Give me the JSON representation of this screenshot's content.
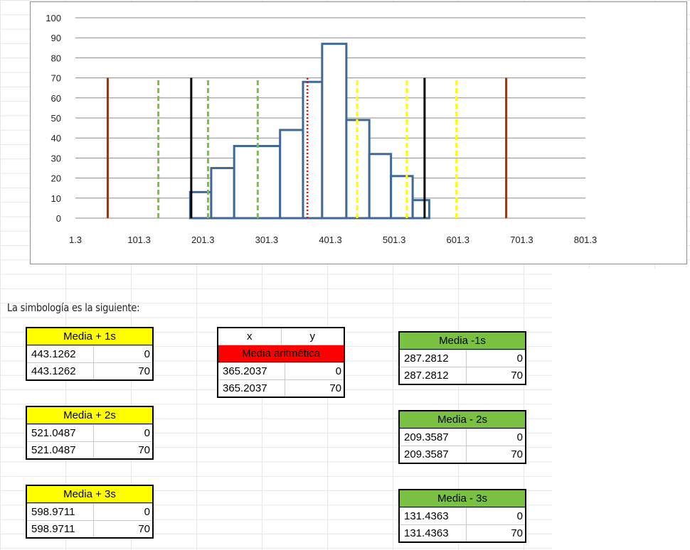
{
  "chart_data": {
    "type": "bar",
    "xlim": [
      1.3,
      801.3
    ],
    "ylim": [
      0,
      100
    ],
    "x_ticks": [
      "1.3",
      "101.3",
      "201.3",
      "301.3",
      "401.3",
      "501.3",
      "601.3",
      "701.3",
      "801.3"
    ],
    "y_ticks": [
      "0",
      "10",
      "20",
      "30",
      "40",
      "50",
      "60",
      "70",
      "80",
      "90",
      "100"
    ],
    "grid": true,
    "histogram": {
      "edges": [
        181.3,
        214.3,
        250.3,
        322.3,
        358.3,
        388.3,
        426.3,
        462.3,
        496.3,
        530.3,
        556.3
      ],
      "values": [
        13,
        25,
        36,
        44,
        68,
        87,
        49,
        32,
        21,
        9
      ],
      "color": "#41689a"
    },
    "vlines": [
      {
        "name": "Media aritmética",
        "x": 365.2037,
        "y": [
          0,
          70
        ],
        "color": "#ff0000",
        "dash": "dot"
      },
      {
        "name": "Media + 1s",
        "x": 443.1262,
        "y": [
          0,
          70
        ],
        "color": "#ffff00",
        "dash": "dash"
      },
      {
        "name": "Media + 2s",
        "x": 521.0487,
        "y": [
          0,
          70
        ],
        "color": "#ffff00",
        "dash": "dash"
      },
      {
        "name": "Media + 3s",
        "x": 598.9711,
        "y": [
          0,
          70
        ],
        "color": "#ffff00",
        "dash": "dash"
      },
      {
        "name": "Media -1s",
        "x": 287.2812,
        "y": [
          0,
          70
        ],
        "color": "#7ac143",
        "dash": "dash"
      },
      {
        "name": "Media - 2s",
        "x": 209.3587,
        "y": [
          0,
          70
        ],
        "color": "#7ac143",
        "dash": "dash"
      },
      {
        "name": "Media - 3s",
        "x": 131.4363,
        "y": [
          0,
          70
        ],
        "color": "#7ac143",
        "dash": "dash"
      },
      {
        "x": 183,
        "y": [
          0,
          70
        ],
        "color": "#000000",
        "dash": "solid"
      },
      {
        "x": 549,
        "y": [
          0,
          70
        ],
        "color": "#000000",
        "dash": "solid"
      },
      {
        "x": 52,
        "y": [
          0,
          70
        ],
        "color": "#8b3a1a",
        "dash": "solid"
      },
      {
        "x": 677,
        "y": [
          0,
          70
        ],
        "color": "#8b3a1a",
        "dash": "solid"
      }
    ]
  },
  "caption": "La simbología es la siguiente:",
  "tables": {
    "mean": {
      "header_x": "x",
      "header_y": "y",
      "title": "Media aritmética",
      "color": "#ff0000",
      "rows": [
        [
          "365.2037",
          "0"
        ],
        [
          "365.2037",
          "70"
        ]
      ]
    },
    "plus1": {
      "title": "Media + 1s",
      "color": "#ffff00",
      "rows": [
        [
          "443.1262",
          "0"
        ],
        [
          "443.1262",
          "70"
        ]
      ]
    },
    "plus2": {
      "title": "Media + 2s",
      "color": "#ffff00",
      "rows": [
        [
          "521.0487",
          "0"
        ],
        [
          "521.0487",
          "70"
        ]
      ]
    },
    "plus3": {
      "title": "Media + 3s",
      "color": "#ffff00",
      "rows": [
        [
          "598.9711",
          "0"
        ],
        [
          "598.9711",
          "70"
        ]
      ]
    },
    "minus1": {
      "title": "Media -1s",
      "color": "#7ac143",
      "rows": [
        [
          "287.2812",
          "0"
        ],
        [
          "287.2812",
          "70"
        ]
      ]
    },
    "minus2": {
      "title": "Media - 2s",
      "color": "#7ac143",
      "rows": [
        [
          "209.3587",
          "0"
        ],
        [
          "209.3587",
          "70"
        ]
      ]
    },
    "minus3": {
      "title": "Media - 3s",
      "color": "#7ac143",
      "rows": [
        [
          "131.4363",
          "0"
        ],
        [
          "131.4363",
          "70"
        ]
      ]
    }
  }
}
